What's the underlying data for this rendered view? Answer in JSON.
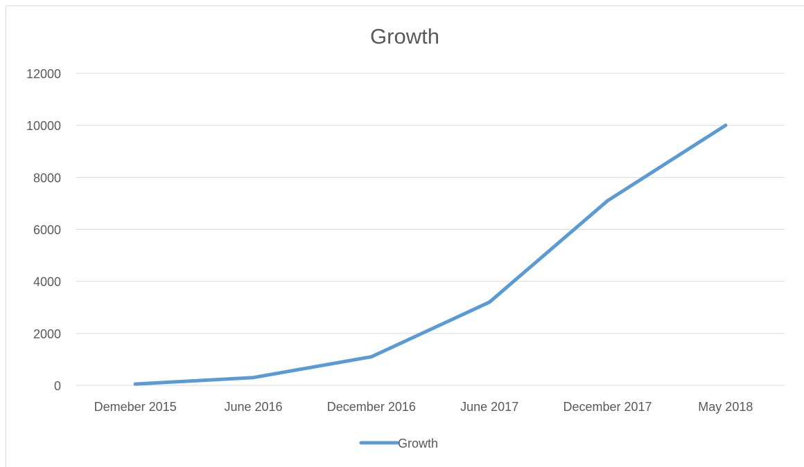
{
  "chart_data": {
    "type": "line",
    "title": "Growth",
    "xlabel": "",
    "ylabel": "",
    "categories": [
      "Demeber 2015",
      "June 2016",
      "December 2016",
      "June 2017",
      "December 2017",
      "May 2018"
    ],
    "series": [
      {
        "name": "Growth",
        "values": [
          50,
          300,
          1100,
          3200,
          7100,
          10000
        ],
        "color": "#5b9bd5"
      }
    ],
    "ylim": [
      0,
      12000
    ],
    "yticks": [
      "0",
      "2000",
      "4000",
      "6000",
      "8000",
      "10000",
      "12000"
    ],
    "grid": true,
    "legend_position": "bottom"
  }
}
